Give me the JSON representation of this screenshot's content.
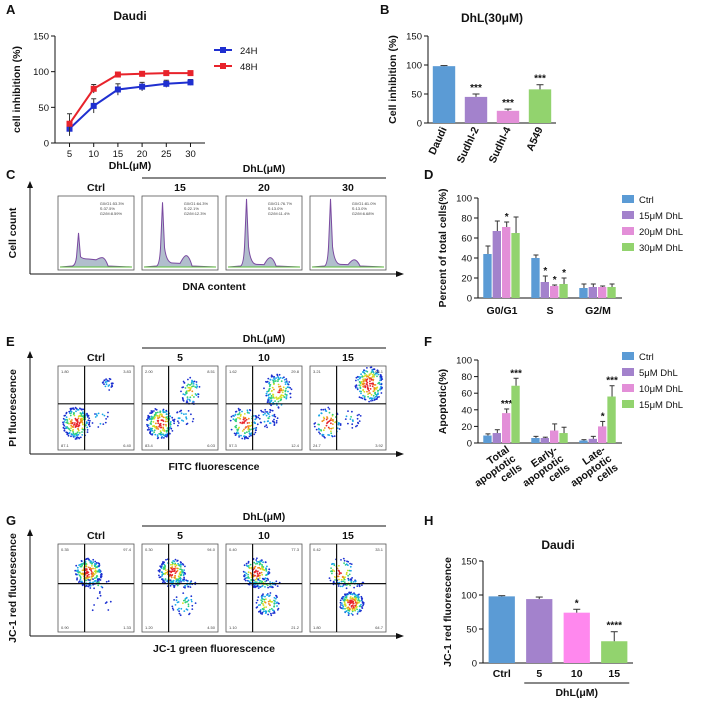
{
  "panels": {
    "A": {
      "letter": "A"
    },
    "B": {
      "letter": "B"
    },
    "C": {
      "letter": "C",
      "ylabel": "Cell count",
      "xlabel": "DNA content",
      "group_label": "DhL(μM)",
      "samples": [
        {
          "name": "Ctrl",
          "stats": [
            "G0/G1:53.3%",
            "S:37.5%",
            "G2/M:8.59%"
          ],
          "peaks": [
            0.5,
            0.9,
            0.18
          ]
        },
        {
          "name": "15",
          "stats": [
            "G0/G1:64.3%",
            "S:22.1%",
            "G2/M:12.3%"
          ],
          "peaks": [
            0.95,
            0.45,
            0.22
          ]
        },
        {
          "name": "20",
          "stats": [
            "G0/G1:76.7%",
            "S:13.0%",
            "G2/M:11.4%"
          ],
          "peaks": [
            1.0,
            0.3,
            0.18
          ]
        },
        {
          "name": "30",
          "stats": [
            "G0/G1:81.0%",
            "S:13.0%",
            "G2/M:6.68%"
          ],
          "peaks": [
            1.0,
            0.3,
            0.14
          ]
        }
      ]
    },
    "D": {
      "letter": "D"
    },
    "E": {
      "letter": "E",
      "ylabel": "PI fluorescence",
      "xlabel": "FITC fluorescence",
      "group_label": "DhL(μM)",
      "samples": [
        {
          "name": "Ctrl",
          "quads": [
            "1.80",
            "3.83",
            "87.1",
            "6.40"
          ]
        },
        {
          "name": "5",
          "quads": [
            "2.00",
            "8.51",
            "83.4",
            "6.03"
          ]
        },
        {
          "name": "10",
          "quads": [
            "1.62",
            "29.8",
            "57.3",
            "12.4"
          ]
        },
        {
          "name": "15",
          "quads": [
            "3.21",
            "68.1",
            "24.7",
            "3.92"
          ]
        }
      ]
    },
    "F": {
      "letter": "F"
    },
    "G": {
      "letter": "G",
      "ylabel": "JC-1 red fluorescence",
      "xlabel": "JC-1 green fluorescence",
      "group_label": "DhL(μM)",
      "samples": [
        {
          "name": "Ctrl",
          "quads": [
            "0.35",
            "97.4",
            "0.90",
            "1.33"
          ]
        },
        {
          "name": "5",
          "quads": [
            "0.30",
            "94.0",
            "1.20",
            "4.50"
          ]
        },
        {
          "name": "10",
          "quads": [
            "0.40",
            "77.3",
            "1.10",
            "21.2"
          ]
        },
        {
          "name": "15",
          "quads": [
            "0.42",
            "33.1",
            "1.80",
            "64.7"
          ]
        }
      ]
    },
    "H": {
      "letter": "H"
    }
  },
  "chart_data": [
    {
      "id": "A",
      "type": "line",
      "title": "Daudi",
      "xlabel": "DhL(μM)",
      "ylabel": "cell inhibition (%)",
      "x": [
        5,
        10,
        15,
        20,
        25,
        30
      ],
      "xlim": [
        2,
        33
      ],
      "ylim": [
        0,
        150
      ],
      "yticks": [
        0,
        50,
        100,
        150
      ],
      "ytick_labels": [
        "0",
        "50",
        "100",
        "150"
      ],
      "series": [
        {
          "name": "24H",
          "color": "#1f2fd0",
          "values": [
            20,
            52,
            75,
            79,
            83,
            85
          ],
          "errors": [
            10,
            10,
            8,
            6,
            5,
            4
          ]
        },
        {
          "name": "48H",
          "color": "#e8232b",
          "values": [
            27,
            76,
            96,
            97,
            98,
            98
          ],
          "errors": [
            14,
            6,
            2,
            2,
            1,
            1
          ]
        }
      ],
      "legend": "top-right"
    },
    {
      "id": "B",
      "type": "bar",
      "title": "DhL(30μM)",
      "ylabel": "Cell inhibition (%)",
      "categories": [
        "Daudi",
        "Sudhl-2",
        "Sudhl-4",
        "A549"
      ],
      "values": [
        98,
        45,
        21,
        58
      ],
      "errors": [
        1,
        5,
        3,
        8
      ],
      "colors": [
        "#5b9bd5",
        "#a382cc",
        "#e38fd8",
        "#92d36e"
      ],
      "significance": [
        "",
        "***",
        "***",
        "***"
      ],
      "ylim": [
        0,
        150
      ],
      "yticks": [
        0,
        50,
        100,
        150
      ],
      "ytick_labels": [
        "0",
        "50",
        "100",
        "150"
      ]
    },
    {
      "id": "D",
      "type": "bar",
      "ylabel": "Percent of total cells(%)",
      "categories": [
        "G0/G1",
        "S",
        "G2/M"
      ],
      "series": [
        {
          "name": "Ctrl",
          "color": "#5b9bd5",
          "values": [
            44,
            40,
            10
          ],
          "errors": [
            8,
            3,
            4
          ]
        },
        {
          "name": "15μM DhL",
          "color": "#a382cc",
          "values": [
            67,
            16,
            11
          ],
          "errors": [
            10,
            6,
            3
          ]
        },
        {
          "name": "20μM DhL",
          "color": "#e38fd8",
          "values": [
            71,
            12,
            11
          ],
          "errors": [
            5,
            1,
            1
          ]
        },
        {
          "name": "30μM DhL",
          "color": "#92d36e",
          "values": [
            65,
            14,
            11
          ],
          "errors": [
            16,
            6,
            3
          ]
        }
      ],
      "significance": [
        [
          "",
          "",
          "*",
          ""
        ],
        [
          "",
          "*",
          "*",
          "*"
        ],
        [
          "",
          "",
          "",
          ""
        ]
      ],
      "ylim": [
        0,
        100
      ],
      "yticks": [
        0,
        20,
        40,
        60,
        80,
        100
      ],
      "ytick_labels": [
        "0",
        "20",
        "40",
        "60",
        "80",
        "100"
      ],
      "legend": "right"
    },
    {
      "id": "F",
      "type": "bar",
      "ylabel": "Apoptotic(%)",
      "categories": [
        "Total apoptotic cells",
        "Early apoptotic cells",
        "Late apoptotic cells"
      ],
      "category_lines": [
        [
          "Total",
          "apoptotic",
          "cells"
        ],
        [
          "Early-",
          "apoptotic",
          "cells"
        ],
        [
          "Late-",
          "apoptotic",
          "cells"
        ]
      ],
      "series": [
        {
          "name": "Ctrl",
          "color": "#5b9bd5",
          "values": [
            9,
            6,
            3
          ],
          "errors": [
            2,
            2,
            1
          ]
        },
        {
          "name": "5μM DhL",
          "color": "#a382cc",
          "values": [
            12,
            6,
            5
          ],
          "errors": [
            4,
            1,
            3
          ]
        },
        {
          "name": "10μM DhL",
          "color": "#e38fd8",
          "values": [
            36,
            15,
            20
          ],
          "errors": [
            5,
            8,
            6
          ]
        },
        {
          "name": "15μM DhL",
          "color": "#92d36e",
          "values": [
            69,
            12,
            56
          ],
          "errors": [
            9,
            7,
            13
          ]
        }
      ],
      "significance": [
        [
          "",
          "",
          "***",
          "***"
        ],
        [
          "",
          "",
          "",
          ""
        ],
        [
          "",
          "",
          "*",
          "***"
        ]
      ],
      "ylim": [
        0,
        100
      ],
      "yticks": [
        0,
        20,
        40,
        60,
        80,
        100
      ],
      "ytick_labels": [
        "0",
        "20",
        "40",
        "60",
        "80",
        "100"
      ],
      "legend": "top-right"
    },
    {
      "id": "H",
      "type": "bar",
      "title": "Daudi",
      "xlabel": "DhL(μM)",
      "ylabel": "JC-1 red fluorescence",
      "categories": [
        "Ctrl",
        "5",
        "10",
        "15"
      ],
      "values": [
        98,
        94,
        74,
        32
      ],
      "errors": [
        1,
        3,
        5,
        14
      ],
      "colors": [
        "#5b9bd5",
        "#a382cc",
        "#ff88ee",
        "#92d36e"
      ],
      "significance": [
        "",
        "",
        "*",
        "****"
      ],
      "ylim": [
        0,
        150
      ],
      "yticks": [
        0,
        50,
        100,
        150
      ],
      "ytick_labels": [
        "0",
        "50",
        "100",
        "150"
      ]
    }
  ]
}
